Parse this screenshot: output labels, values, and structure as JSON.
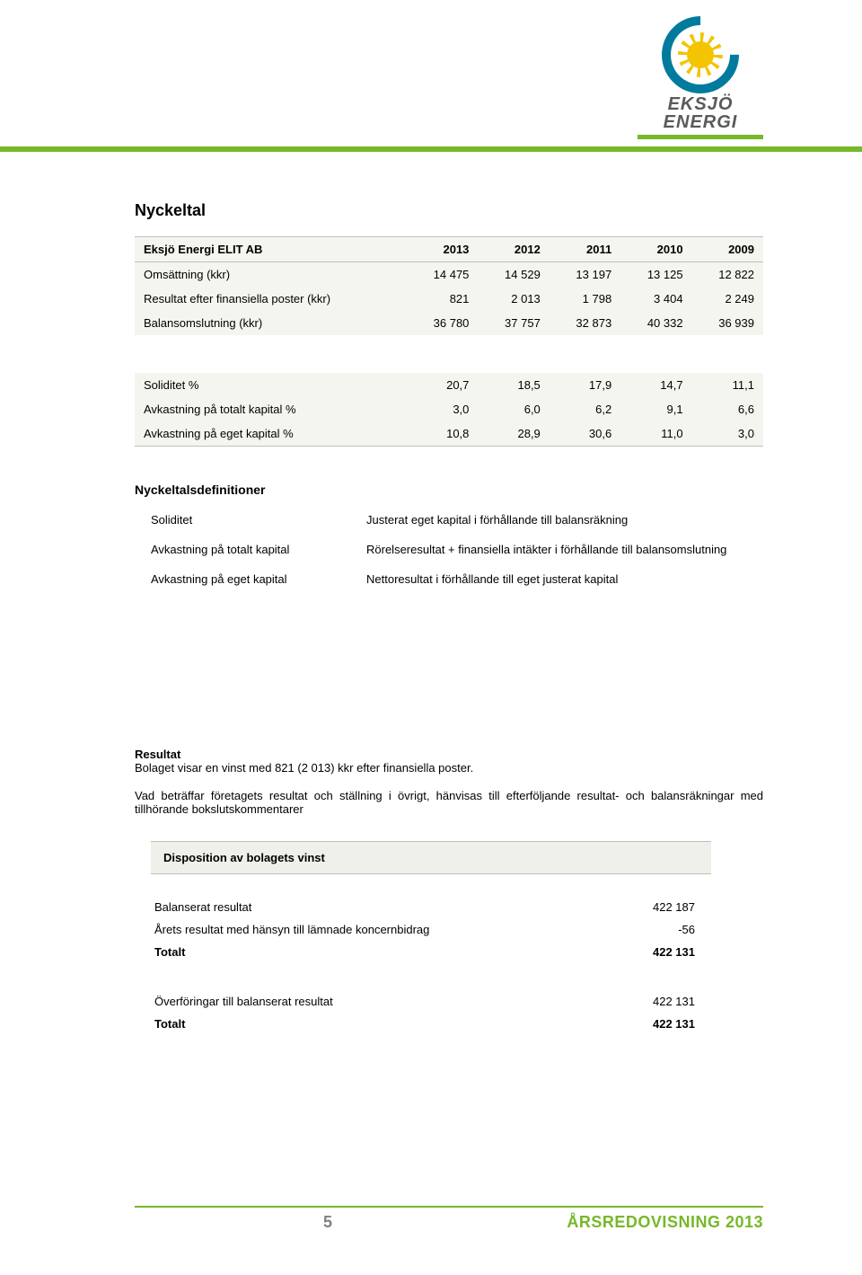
{
  "logo": {
    "line1": "EKSJÖ",
    "line2": "ENERGI",
    "brand_color": "#76b82a",
    "horseshoe_color": "#007b9e",
    "sun_color": "#f3c400"
  },
  "section_title": "Nyckeltal",
  "nyckeltal_table": {
    "type": "table",
    "header_bg": "#f5f5f0",
    "body_bg": "#f5f5f0",
    "border_color": "#bfbfbd",
    "columns": [
      "Eksjö Energi ELIT AB",
      "2013",
      "2012",
      "2011",
      "2010",
      "2009"
    ],
    "rows_block1": [
      [
        "Omsättning (kkr)",
        "14 475",
        "14 529",
        "13 197",
        "13 125",
        "12 822"
      ],
      [
        "Resultat efter finansiella poster (kkr)",
        "821",
        "2 013",
        "1 798",
        "3 404",
        "2 249"
      ],
      [
        "Balansomslutning (kkr)",
        "36 780",
        "37 757",
        "32 873",
        "40 332",
        "36 939"
      ]
    ],
    "rows_block2": [
      [
        "Soliditet %",
        "20,7",
        "18,5",
        "17,9",
        "14,7",
        "11,1"
      ],
      [
        "Avkastning på totalt kapital %",
        "3,0",
        "6,0",
        "6,2",
        "9,1",
        "6,6"
      ],
      [
        "Avkastning på eget kapital %",
        "10,8",
        "28,9",
        "30,6",
        "11,0",
        "3,0"
      ]
    ]
  },
  "defs_title": "Nyckeltalsdefinitioner",
  "definitions": [
    {
      "term": "Soliditet",
      "desc": "Justerat eget kapital i förhållande till balansräkning"
    },
    {
      "term": "Avkastning på totalt kapital",
      "desc": "Rörelseresultat + finansiella intäkter i förhållande till balansomslutning"
    },
    {
      "term": "Avkastning på eget kapital",
      "desc": "Nettoresultat i förhållande till eget justerat kapital"
    }
  ],
  "resultat": {
    "label": "Resultat",
    "line1": "Bolaget visar en vinst med 821 (2 013) kkr efter finansiella poster.",
    "line2": "Vad beträffar företagets resultat och ställning i övrigt, hänvisas till efterföljande resultat- och balansräkningar med tillhörande bokslutskommentarer"
  },
  "disposition": {
    "title": "Disposition av bolagets vinst",
    "rows1": [
      [
        "Balanserat resultat",
        "422 187"
      ],
      [
        "Årets resultat med hänsyn till lämnade koncernbidrag",
        "-56"
      ]
    ],
    "total1": [
      "Totalt",
      "422 131"
    ],
    "rows2": [
      [
        "Överföringar till balanserat resultat",
        "422 131"
      ]
    ],
    "total2": [
      "Totalt",
      "422 131"
    ]
  },
  "footer": {
    "page_number": "5",
    "doc_label": "ÅRSREDOVISNING 2013"
  }
}
